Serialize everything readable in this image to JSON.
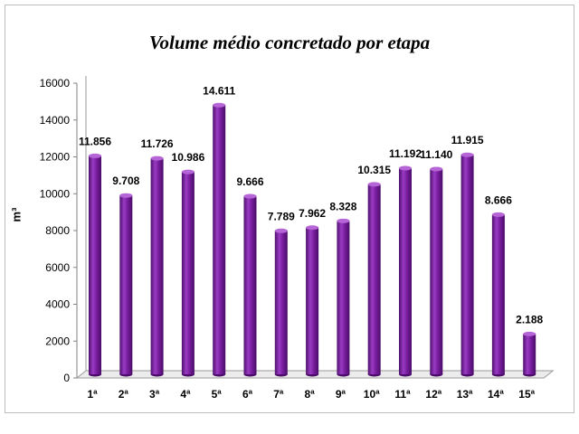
{
  "chart_data": {
    "type": "bar",
    "title": "Volume médio concretado por etapa",
    "ylabel": "m³",
    "xlabel": "",
    "ylim": [
      0,
      16000
    ],
    "yticks": [
      0,
      2000,
      4000,
      6000,
      8000,
      10000,
      12000,
      14000,
      16000
    ],
    "categories": [
      "1ª",
      "2ª",
      "3ª",
      "4ª",
      "5ª",
      "6ª",
      "7ª",
      "8ª",
      "9ª",
      "10ª",
      "11ª",
      "12ª",
      "13ª",
      "14ª",
      "15ª"
    ],
    "values": [
      11856,
      9708,
      11726,
      10986,
      14611,
      9666,
      7789,
      7962,
      8328,
      10315,
      11192,
      11140,
      11915,
      8666,
      2188
    ],
    "data_labels": [
      "11.856",
      "9.708",
      "11.726",
      "10.986",
      "14.611",
      "9.666",
      "7.789",
      "7.962",
      "8.328",
      "10.315",
      "11.192",
      "11.140",
      "11.915",
      "8.666",
      "2.188"
    ],
    "bar_color": "#7a1fa0",
    "grid": false,
    "legend": "none"
  }
}
